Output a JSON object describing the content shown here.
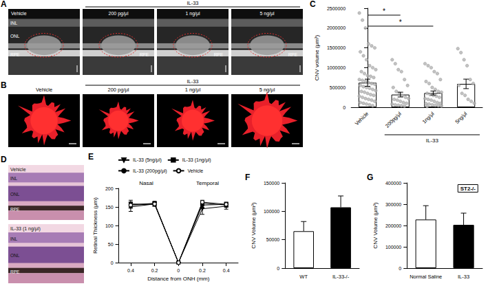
{
  "image_panels": [
    {
      "letter": "A",
      "group_label": "IL-33",
      "images": [
        {
          "label": "Vehicle",
          "layers": [
            "INL",
            "ONL",
            "RPE"
          ]
        },
        {
          "label": "200 pg/μl",
          "layers": [
            "RPE"
          ]
        },
        {
          "label": "1 ng/μl",
          "layers": [
            "RPE"
          ]
        },
        {
          "label": "5 ng/μl",
          "layers": [
            "RPE"
          ]
        }
      ]
    },
    {
      "letter": "B",
      "group_label": "IL-33",
      "images": [
        {
          "label": "Vehicle"
        },
        {
          "label": "200 pg/μl"
        },
        {
          "label": "1 ng/μl"
        },
        {
          "label": "5 ng/μl"
        }
      ]
    },
    {
      "letter": "D",
      "images": [
        {
          "label": "Vehicle",
          "layers": [
            "INL",
            "ONL",
            "RPE"
          ]
        },
        {
          "label": "IL-33 (1 ng/μl)",
          "layers": [
            "INL",
            "ONL",
            "RPE"
          ]
        }
      ]
    }
  ],
  "chart_data": [
    {
      "panel": "C",
      "type": "bar",
      "categories": [
        "Vehicle",
        "200pg/μl",
        "1ng/μl",
        "5ng/μl"
      ],
      "group_label": "IL-33",
      "ylabel": "CNV volume (μm³)",
      "values": [
        620000,
        320000,
        360000,
        590000
      ],
      "errors": [
        90000,
        60000,
        50000,
        120000
      ],
      "points": [
        [
          2380000,
          2200000,
          2000000,
          1600000,
          1550000,
          1500000,
          1400000,
          1300000,
          1200000,
          1050000,
          1000000,
          950000,
          900000,
          850000,
          800000,
          780000,
          750000,
          700000,
          680000,
          650000,
          620000,
          600000,
          580000,
          550000,
          520000,
          500000,
          480000,
          450000,
          420000,
          400000,
          380000,
          350000,
          320000,
          300000,
          280000,
          250000,
          220000,
          200000,
          180000,
          150000,
          120000,
          100000,
          80000,
          60000,
          40000
        ],
        [
          1200000,
          1100000,
          950000,
          900000,
          700000,
          550000,
          500000,
          400000,
          350000,
          300000,
          250000,
          220000,
          200000,
          180000,
          150000,
          120000,
          100000,
          80000,
          60000,
          50000,
          40000,
          30000
        ],
        [
          1100000,
          1050000,
          1000000,
          900000,
          850000,
          700000,
          650000,
          600000,
          500000,
          450000,
          400000,
          380000,
          350000,
          320000,
          300000,
          280000,
          250000,
          220000,
          200000,
          180000,
          150000,
          120000,
          100000,
          90000,
          80000,
          60000,
          50000,
          40000,
          30000,
          20000
        ],
        [
          1480000,
          1380000,
          1200000,
          1050000,
          700000,
          600000,
          550000,
          350000,
          300000,
          200000,
          150000,
          100000
        ]
      ],
      "color": "#ffffff",
      "ylim": [
        0,
        2500000
      ],
      "yticks": [
        0,
        500000,
        1000000,
        1500000,
        2000000,
        2500000
      ],
      "significance": [
        {
          "from": "Vehicle",
          "to": "200pg/μl",
          "label": "*"
        },
        {
          "from": "Vehicle",
          "to": "1ng/μl",
          "label": "*"
        }
      ]
    },
    {
      "panel": "E",
      "type": "line",
      "categories": [
        "0.4",
        "0.2",
        "0",
        "0.2",
        "0.4"
      ],
      "xlabel": "Distance from ONH (mm)",
      "ylabel": "Retinal Thickness (μm)",
      "annotations": [
        "Nasal",
        "Temporal"
      ],
      "series": [
        {
          "name": "IL-33 (5ng/μl)",
          "color": "#000000",
          "marker": "triangle-down",
          "values": [
            150,
            158,
            0,
            145,
            152
          ],
          "errors": [
            12,
            6,
            0,
            15,
            8
          ]
        },
        {
          "name": "IL-33 (1ng/μl)",
          "color": "#000000",
          "marker": "square",
          "values": [
            155,
            160,
            0,
            160,
            155
          ],
          "errors": [
            8,
            5,
            0,
            6,
            6
          ]
        },
        {
          "name": "IL-33 (200pg/μl)",
          "color": "#000000",
          "marker": "circle",
          "values": [
            158,
            157,
            0,
            155,
            157
          ],
          "errors": [
            10,
            5,
            0,
            8,
            6
          ]
        },
        {
          "name": "Vehicle",
          "color": "#000000",
          "marker": "circle-open",
          "values": [
            155,
            158,
            0,
            163,
            157
          ],
          "errors": [
            8,
            5,
            0,
            5,
            5
          ]
        }
      ],
      "ylim": [
        0,
        200
      ],
      "yticks": [
        0,
        50,
        100,
        150,
        200
      ],
      "legend": "top"
    },
    {
      "panel": "F",
      "type": "bar",
      "categories": [
        "WT",
        "IL-33-/-"
      ],
      "ylabel": "CNV Volume (μm³)",
      "values": [
        65000,
        107000
      ],
      "errors": [
        17000,
        20000
      ],
      "colors": [
        "#ffffff",
        "#000000"
      ],
      "ylim": [
        0,
        150000
      ],
      "yticks": [
        0,
        50000,
        100000,
        150000
      ]
    },
    {
      "panel": "G",
      "type": "bar",
      "title": "ST2-/-",
      "categories": [
        "Normal Saline",
        "IL-33"
      ],
      "ylabel": "CNV Volume (μm³)",
      "values": [
        228000,
        203000
      ],
      "errors": [
        65000,
        55000
      ],
      "colors": [
        "#ffffff",
        "#000000"
      ],
      "ylim": [
        0,
        400000
      ],
      "yticks": [
        0,
        100000,
        200000,
        300000,
        400000
      ]
    }
  ]
}
